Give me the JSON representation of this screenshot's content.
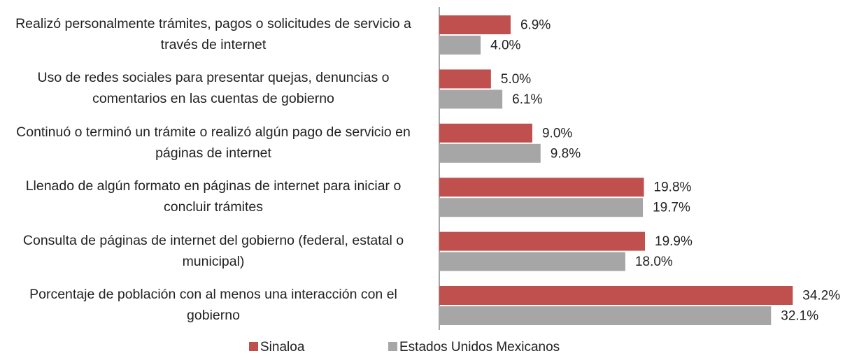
{
  "chart_data": {
    "type": "bar",
    "orientation": "horizontal",
    "categories": [
      "Realizó personalmente trámites, pagos o solicitudes de servicio a través de internet",
      "Uso de redes sociales para presentar quejas, denuncias o comentarios en las cuentas de gobierno",
      "Continuó o terminó un trámite o realizó algún pago de servicio en páginas de internet",
      "Llenado de algún formato en páginas de internet para iniciar o concluir trámites",
      "Consulta de páginas de internet del gobierno (federal, estatal o municipal)",
      "Porcentaje de población con al menos una interacción con el gobierno"
    ],
    "series": [
      {
        "name": "Sinaloa",
        "color": "#c0504d",
        "values": [
          6.9,
          5.0,
          9.0,
          19.8,
          19.9,
          34.2
        ],
        "value_labels": [
          "6.9%",
          "5.0%",
          "9.0%",
          "19.8%",
          "19.9%",
          "34.2%"
        ]
      },
      {
        "name": "Estados Unidos Mexicanos",
        "color": "#a6a6a6",
        "values": [
          4.0,
          6.1,
          9.8,
          19.7,
          18.0,
          32.1
        ],
        "value_labels": [
          "4.0%",
          "6.1%",
          "9.8%",
          "19.7%",
          "18.0%",
          "32.1%"
        ]
      }
    ],
    "xlim": [
      0,
      40
    ],
    "legend": "bottom"
  }
}
